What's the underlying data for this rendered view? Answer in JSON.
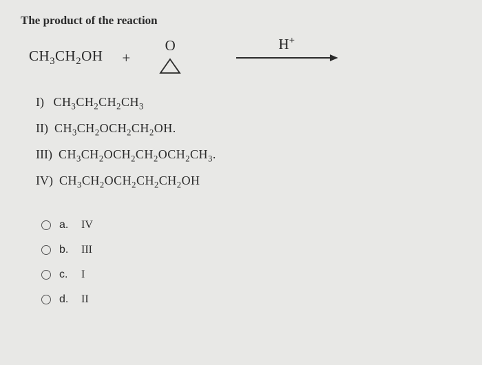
{
  "title": "The product of the reaction",
  "reaction": {
    "reactant1_html": "CH<sub>3</sub>CH<sub>2</sub>OH",
    "plus": "+",
    "epoxide_label": "O",
    "catalyst_html": "H<sup>+</sup>",
    "arrow_color": "#2a2a2a",
    "triangle_stroke": "#2a2a2a"
  },
  "products": [
    {
      "label": "I)",
      "formula_html": "CH<sub>3</sub>CH<sub>2</sub>CH<sub>2</sub>CH<sub>3</sub>"
    },
    {
      "label": "II)",
      "formula_html": "CH<sub>3</sub>CH<sub>2</sub>OCH<sub>2</sub>CH<sub>2</sub>OH."
    },
    {
      "label": "III)",
      "formula_html": "CH<sub>3</sub>CH<sub>2</sub>OCH<sub>2</sub>CH<sub>2</sub>OCH<sub>2</sub>CH<sub>3</sub>."
    },
    {
      "label": "IV)",
      "formula_html": "CH<sub>3</sub>CH<sub>2</sub>OCH<sub>2</sub>CH<sub>2</sub>CH<sub>2</sub>OH"
    }
  ],
  "options": [
    {
      "letter": "a.",
      "value": "IV"
    },
    {
      "letter": "b.",
      "value": "III"
    },
    {
      "letter": "c.",
      "value": "I"
    },
    {
      "letter": "d.",
      "value": "II"
    }
  ],
  "colors": {
    "background": "#e8e8e6",
    "text": "#2a2a2a",
    "radio_border": "#555"
  }
}
